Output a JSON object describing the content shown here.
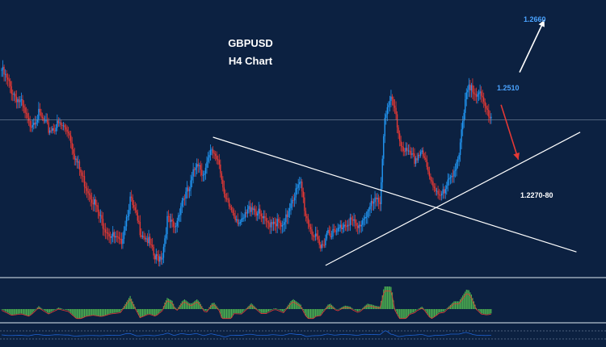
{
  "header": {
    "symbol": "GBPUSD",
    "timeframe": "H4 Chart"
  },
  "levels": {
    "target_up": "1.2660",
    "resistance": "1.2510",
    "support": "1.2270-80"
  },
  "colors": {
    "background": "#0c2141",
    "bull_candle": "#2196f3",
    "bear_candle": "#e53935",
    "trendline": "#ffffff",
    "hist_up": "#4caf50",
    "signal_line": "#e53935",
    "osc_line": "#1e63d6",
    "level_blue": "#4aa3ff",
    "arrow_down": "#e53935"
  },
  "chart_data": {
    "type": "candlestick",
    "title": "GBPUSD",
    "subtitle": "H4 Chart",
    "ylim": [
      1.215,
      1.27
    ],
    "close_path": [
      [
        0,
        1.256
      ],
      [
        8,
        1.252
      ],
      [
        16,
        1.249
      ],
      [
        22,
        1.245
      ],
      [
        30,
        1.247
      ],
      [
        38,
        1.244
      ],
      [
        46,
        1.245
      ],
      [
        54,
        1.244
      ],
      [
        60,
        1.238
      ],
      [
        66,
        1.234
      ],
      [
        74,
        1.23
      ],
      [
        80,
        1.226
      ],
      [
        88,
        1.223
      ],
      [
        96,
        1.221
      ],
      [
        104,
        1.23
      ],
      [
        112,
        1.224
      ],
      [
        118,
        1.222
      ],
      [
        124,
        1.218
      ],
      [
        130,
        1.219
      ],
      [
        134,
        1.226
      ],
      [
        140,
        1.224
      ],
      [
        146,
        1.23
      ],
      [
        152,
        1.232
      ],
      [
        158,
        1.238
      ],
      [
        164,
        1.235
      ],
      [
        170,
        1.24
      ],
      [
        176,
        1.238
      ],
      [
        180,
        1.23
      ],
      [
        186,
        1.228
      ],
      [
        194,
        1.225
      ],
      [
        202,
        1.229
      ],
      [
        208,
        1.227
      ],
      [
        214,
        1.225
      ],
      [
        220,
        1.226
      ],
      [
        228,
        1.224
      ],
      [
        234,
        1.23
      ],
      [
        242,
        1.233
      ],
      [
        246,
        1.227
      ],
      [
        252,
        1.223
      ],
      [
        258,
        1.22
      ],
      [
        264,
        1.224
      ],
      [
        270,
        1.223
      ],
      [
        276,
        1.225
      ],
      [
        282,
        1.226
      ],
      [
        288,
        1.224
      ],
      [
        294,
        1.227
      ],
      [
        300,
        1.229
      ],
      [
        306,
        1.23
      ],
      [
        310,
        1.247
      ],
      [
        316,
        1.25
      ],
      [
        322,
        1.242
      ],
      [
        328,
        1.239
      ],
      [
        334,
        1.238
      ],
      [
        340,
        1.24
      ],
      [
        346,
        1.234
      ],
      [
        352,
        1.232
      ],
      [
        358,
        1.231
      ],
      [
        364,
        1.235
      ],
      [
        370,
        1.239
      ],
      [
        376,
        1.251
      ],
      [
        380,
        1.253
      ],
      [
        386,
        1.251
      ],
      [
        392,
        1.248
      ],
      [
        396,
        1.247
      ]
    ],
    "reference_line": 1.246,
    "trendlines": [
      {
        "name": "descending",
        "from": [
          171,
          1.2425
        ],
        "to": [
          465,
          1.2195
        ]
      },
      {
        "name": "ascending",
        "from": [
          262,
          1.2168
        ],
        "to": [
          468,
          1.2435
        ]
      }
    ],
    "arrows": [
      {
        "from": [
          419,
          1.2555
        ],
        "to": [
          439,
          1.266
        ],
        "color": "#ffffff",
        "label": "target_up"
      },
      {
        "from": [
          404,
          1.249
        ],
        "to": [
          418,
          1.238
        ],
        "color": "#e53935",
        "label": "resistance"
      }
    ],
    "indicators": [
      {
        "type": "histogram",
        "name": "momentum"
      },
      {
        "type": "line",
        "name": "oscillator"
      }
    ]
  }
}
